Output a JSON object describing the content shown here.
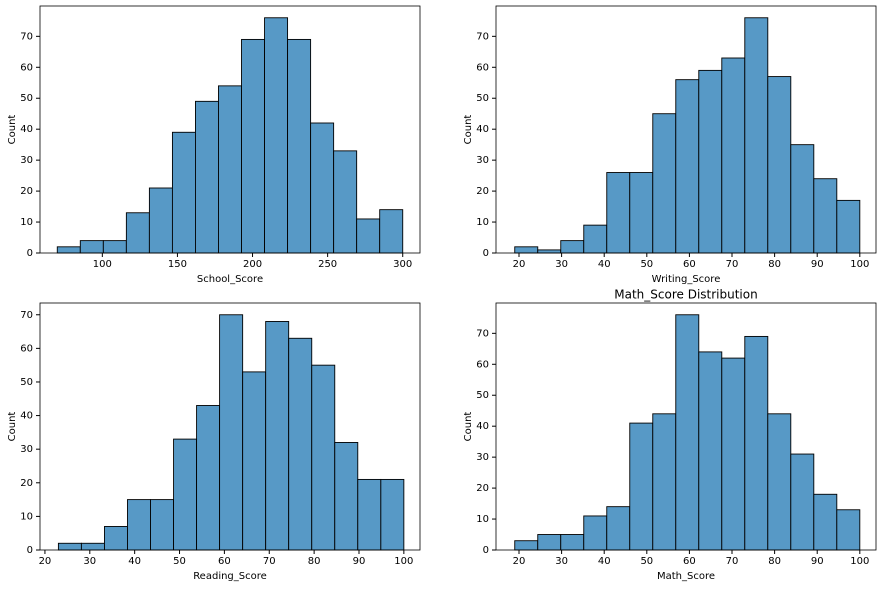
{
  "chart_data": [
    {
      "type": "histogram",
      "xlabel": "School_Score",
      "ylabel": "Count",
      "bins": [
        70,
        85.33,
        100.67,
        116,
        131.33,
        146.67,
        162,
        177.33,
        192.67,
        208,
        223.33,
        238.67,
        254,
        269.33,
        284.67,
        300
      ],
      "values": [
        2,
        4,
        4,
        13,
        21,
        39,
        49,
        54,
        69,
        76,
        69,
        42,
        33,
        11,
        14
      ],
      "xlim": [
        58.5,
        311.5
      ],
      "xticks": [
        100,
        150,
        200,
        250,
        300
      ],
      "ylim": [
        0,
        79.8
      ],
      "yticks": [
        0,
        10,
        20,
        30,
        40,
        50,
        60,
        70
      ],
      "color": "#5799c6"
    },
    {
      "type": "histogram",
      "xlabel": "Writing_Score",
      "ylabel": "Count",
      "bins": [
        19,
        24.4,
        29.8,
        35.2,
        40.6,
        46,
        51.4,
        56.8,
        62.2,
        67.6,
        73,
        78.4,
        83.8,
        89.2,
        94.6,
        100
      ],
      "values": [
        2,
        1,
        4,
        9,
        26,
        26,
        45,
        56,
        59,
        63,
        76,
        57,
        35,
        24,
        17
      ],
      "xlim": [
        14.6,
        103.8
      ],
      "xticks": [
        20,
        30,
        40,
        50,
        60,
        70,
        80,
        90,
        100
      ],
      "ylim": [
        0,
        79.8
      ],
      "yticks": [
        0,
        10,
        20,
        30,
        40,
        50,
        60,
        70
      ],
      "color": "#5799c6"
    },
    {
      "type": "histogram",
      "xlabel": "Reading_Score",
      "ylabel": "Count",
      "bins": [
        23,
        28.13,
        33.27,
        38.4,
        43.53,
        48.67,
        53.8,
        58.93,
        64.07,
        69.2,
        74.33,
        79.47,
        84.6,
        89.73,
        94.87,
        100
      ],
      "values": [
        2,
        2,
        7,
        15,
        15,
        33,
        43,
        70,
        53,
        68,
        63,
        55,
        32,
        21,
        21
      ],
      "xlim": [
        18.9,
        103.6
      ],
      "xticks": [
        20,
        30,
        40,
        50,
        60,
        70,
        80,
        90,
        100
      ],
      "ylim": [
        0,
        73.5
      ],
      "yticks": [
        0,
        10,
        20,
        30,
        40,
        50,
        60,
        70
      ],
      "color": "#5799c6"
    },
    {
      "type": "histogram",
      "title": "Math_Score Distribution",
      "xlabel": "Math_Score",
      "ylabel": "Count",
      "bins": [
        19,
        24.4,
        29.8,
        35.2,
        40.6,
        46,
        51.4,
        56.8,
        62.2,
        67.6,
        73,
        78.4,
        83.8,
        89.2,
        94.6,
        100
      ],
      "values": [
        3,
        5,
        5,
        11,
        14,
        41,
        44,
        76,
        64,
        62,
        69,
        44,
        31,
        18,
        13
      ],
      "xlim": [
        14.6,
        103.8
      ],
      "xticks": [
        20,
        30,
        40,
        50,
        60,
        70,
        80,
        90,
        100
      ],
      "ylim": [
        0,
        79.8
      ],
      "yticks": [
        0,
        10,
        20,
        30,
        40,
        50,
        60,
        70
      ],
      "color": "#5799c6"
    }
  ]
}
